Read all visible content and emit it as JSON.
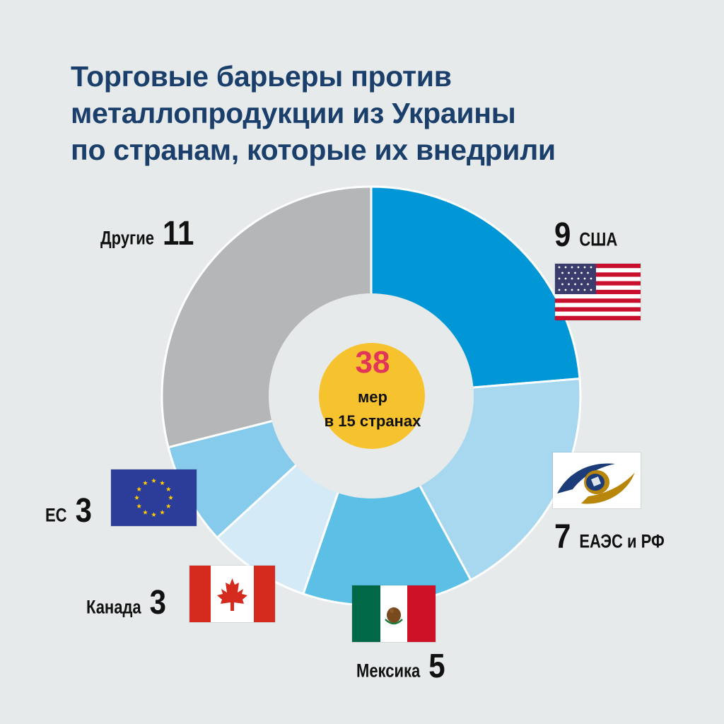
{
  "title_lines": [
    "Торговые барьеры против",
    "металлопродукции из Украины",
    "по странам, которые их внедрили"
  ],
  "center": {
    "total": "38",
    "line1": "мер",
    "line2": "в 15 странах"
  },
  "colors": {
    "background": "#e6eaeb",
    "title": "#1b3f6b",
    "center_circle": "#f6c22d",
    "center_total": "#e2355a"
  },
  "chart_data": {
    "type": "pie",
    "style": "donut",
    "title": "Торговые барьеры против металлопродукции из Украины по странам, которые их внедрили",
    "total": 38,
    "slices": [
      {
        "label": "США",
        "value": 9,
        "color": "#0196d6",
        "flag": "usa-flag"
      },
      {
        "label": "ЕАЭС и РФ",
        "value": 7,
        "color": "#a8d8ef",
        "flag": "eaeu-emblem"
      },
      {
        "label": "Мексика",
        "value": 5,
        "color": "#5cc0e6",
        "flag": "mexico-flag"
      },
      {
        "label": "Канада",
        "value": 3,
        "color": "#d4ebf7",
        "flag": "canada-flag"
      },
      {
        "label": "ЕС",
        "value": 3,
        "color": "#86cbec",
        "flag": "eu-flag"
      },
      {
        "label": "Другие",
        "value": 11,
        "color": "#b5b6b8",
        "flag": ""
      }
    ]
  }
}
